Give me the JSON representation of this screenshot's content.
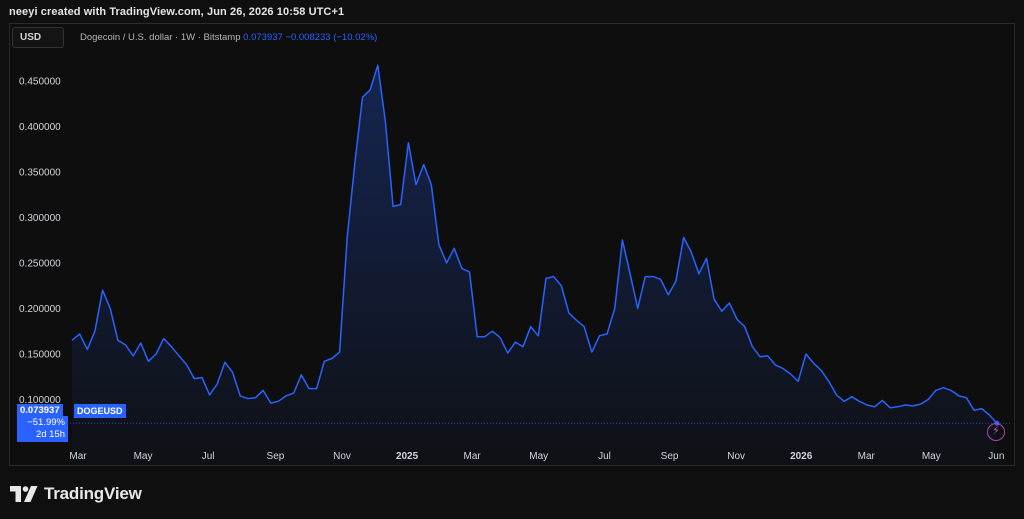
{
  "header": {
    "credit": "neeyi created with TradingView.com, Jun 26, 2026 10:58 UTC+1"
  },
  "toolbar": {
    "currency": "USD"
  },
  "legend": {
    "title": "Dogecoin / U.S. dollar · 1W · Bitstamp",
    "last": "0.073937",
    "change": "−0.008233 (−10.02%)"
  },
  "price_tag": {
    "price": "0.073937",
    "symbol": "DOGEUSD",
    "change_pct": "−51.99%",
    "countdown": "2d 15h"
  },
  "footer": {
    "brand": "TradingView"
  },
  "colors": {
    "line": "#2962ff",
    "background": "#0f0f0f",
    "tag": "#2962ff"
  },
  "chart_data": {
    "type": "area",
    "title": "Dogecoin / U.S. dollar · 1W · Bitstamp",
    "x_tick_labels": [
      "Mar",
      "May",
      "Jul",
      "Sep",
      "Nov",
      "2025",
      "Mar",
      "May",
      "Jul",
      "Sep",
      "Nov",
      "2026",
      "Mar",
      "May",
      "Jun"
    ],
    "y_tick_labels": [
      "0.450000",
      "0.400000",
      "0.350000",
      "0.300000",
      "0.250000",
      "0.200000",
      "0.150000",
      "0.100000"
    ],
    "y_ticks": [
      0.45,
      0.4,
      0.35,
      0.3,
      0.25,
      0.2,
      0.15,
      0.1
    ],
    "ylim": [
      0.072,
      0.475
    ],
    "grid": false,
    "series": [
      {
        "values": [
          0.165,
          0.172,
          0.155,
          0.175,
          0.22,
          0.2,
          0.165,
          0.16,
          0.148,
          0.162,
          0.142,
          0.15,
          0.167,
          0.158,
          0.148,
          0.138,
          0.123,
          0.124,
          0.105,
          0.117,
          0.141,
          0.13,
          0.104,
          0.101,
          0.102,
          0.11,
          0.096,
          0.098,
          0.104,
          0.107,
          0.127,
          0.112,
          0.112,
          0.142,
          0.145,
          0.152,
          0.278,
          0.36,
          0.432,
          0.44,
          0.467,
          0.405,
          0.312,
          0.314,
          0.382,
          0.336,
          0.358,
          0.336,
          0.27,
          0.25,
          0.266,
          0.244,
          0.24,
          0.169,
          0.169,
          0.175,
          0.168,
          0.151,
          0.163,
          0.158,
          0.18,
          0.17,
          0.233,
          0.235,
          0.225,
          0.195,
          0.187,
          0.18,
          0.152,
          0.17,
          0.172,
          0.2,
          0.275,
          0.238,
          0.2,
          0.235,
          0.235,
          0.232,
          0.215,
          0.23,
          0.278,
          0.262,
          0.238,
          0.255,
          0.21,
          0.197,
          0.206,
          0.188,
          0.18,
          0.158,
          0.147,
          0.148,
          0.138,
          0.134,
          0.128,
          0.12,
          0.15,
          0.14,
          0.132,
          0.12,
          0.105,
          0.098,
          0.103,
          0.098,
          0.094,
          0.092,
          0.099,
          0.091,
          0.092,
          0.094,
          0.093,
          0.095,
          0.1,
          0.11,
          0.113,
          0.11,
          0.104,
          0.102,
          0.088,
          0.09,
          0.083,
          0.0739
        ]
      }
    ],
    "last_value": 0.073937
  }
}
